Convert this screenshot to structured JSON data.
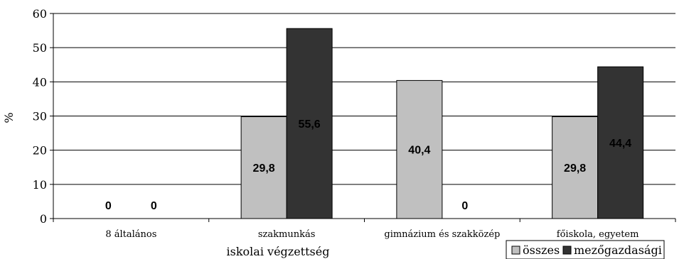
{
  "chart_data": {
    "type": "bar",
    "title": "",
    "xlabel": "iskolai végzettség",
    "ylabel": "%",
    "ylim": [
      0,
      60
    ],
    "yticks": [
      0,
      10,
      20,
      30,
      40,
      50,
      60
    ],
    "grid": true,
    "legend_position": "bottom-right",
    "categories": [
      "8 általános",
      "szakmunkás",
      "gimnázium és szakközép",
      "főiskola, egyetem"
    ],
    "series": [
      {
        "name": "összes",
        "values": [
          0,
          29.8,
          40.4,
          29.8
        ],
        "labels": [
          "0",
          "29,8",
          "40,4",
          "29,8"
        ],
        "color": "#c0c0c0"
      },
      {
        "name": "mezőgazdasági",
        "values": [
          0,
          55.6,
          0,
          44.4
        ],
        "labels": [
          "0",
          "55,6",
          "0",
          "44,4"
        ],
        "color": "#333333"
      }
    ]
  }
}
